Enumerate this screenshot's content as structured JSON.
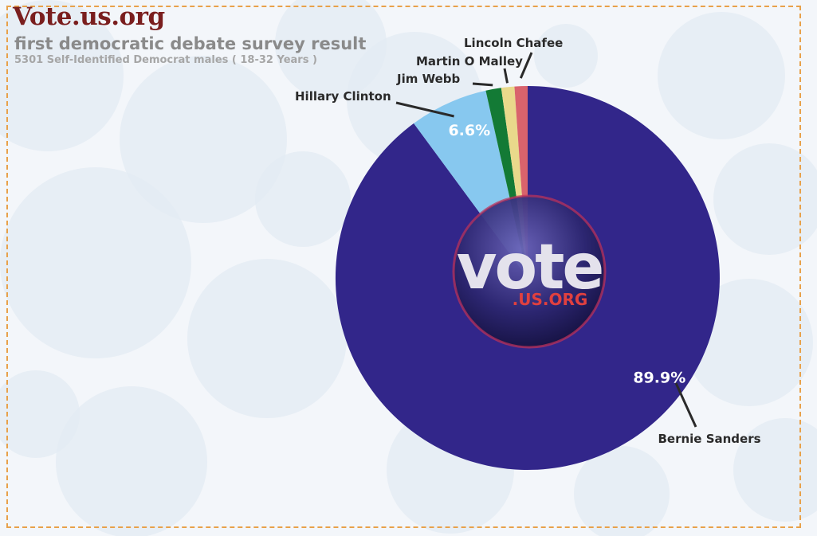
{
  "header": {
    "brand": "Vote.us.org",
    "subtitle": "first democratic debate survey result",
    "meta": "5301 Self-Identified Democrat males ( 18-32 Years )"
  },
  "logo": {
    "word": "vote",
    "suffix": ".US.ORG"
  },
  "colors": {
    "frame": "#e8a14a",
    "brand": "#7a1e1e"
  },
  "chart_data": {
    "type": "pie",
    "title": "first democratic debate survey result",
    "slices": [
      {
        "label": "Bernie Sanders",
        "value": 89.9,
        "data_label": "89.9%",
        "color": "#32268a"
      },
      {
        "label": "Hillary Clinton",
        "value": 6.6,
        "data_label": "6.6%",
        "color": "#87c8ef"
      },
      {
        "label": "Jim Webb",
        "value": 1.3,
        "data_label": "",
        "color": "#137a35"
      },
      {
        "label": "Martin O Malley",
        "value": 1.1,
        "data_label": "",
        "color": "#e9d98b"
      },
      {
        "label": "Lincoln Chafee",
        "value": 1.1,
        "data_label": "",
        "color": "#d9636c"
      }
    ],
    "legend": "none"
  }
}
